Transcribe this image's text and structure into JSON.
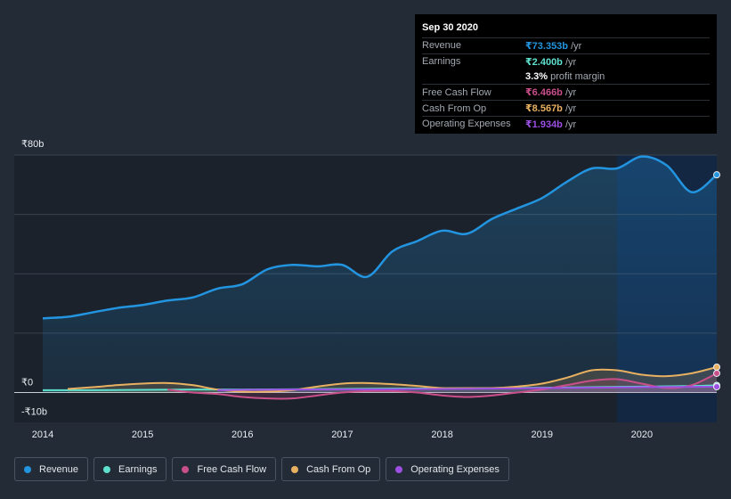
{
  "chart_data": {
    "type": "area",
    "y_tick_labels": [
      {
        "value": 80,
        "label": "₹80b"
      },
      {
        "value": 0,
        "label": "₹0"
      },
      {
        "value": -10,
        "label": "-₹10b"
      }
    ],
    "ylim": [
      -10,
      80
    ],
    "xlim": [
      2014,
      2020.75
    ],
    "x_tick_labels": [
      "2014",
      "2015",
      "2016",
      "2017",
      "2018",
      "2019",
      "2020"
    ],
    "x_tick_values": [
      2014,
      2015,
      2016,
      2017,
      2018,
      2019,
      2020
    ],
    "highlight_from": 2019.75,
    "series": [
      {
        "name": "Revenue",
        "color": "#2394df",
        "x": [
          2014,
          2014.25,
          2014.5,
          2014.75,
          2015,
          2015.25,
          2015.5,
          2015.75,
          2016,
          2016.25,
          2016.5,
          2016.75,
          2017,
          2017.25,
          2017.5,
          2017.75,
          2018,
          2018.25,
          2018.5,
          2018.75,
          2019,
          2019.25,
          2019.5,
          2019.75,
          2020,
          2020.25,
          2020.5,
          2020.75
        ],
        "values": [
          25,
          25.5,
          27,
          28.5,
          29.5,
          31,
          32,
          35,
          36.5,
          41.5,
          43,
          42.5,
          43,
          39,
          47.5,
          51,
          54.5,
          53.5,
          58.5,
          62,
          65.5,
          71,
          75.5,
          75.5,
          79.5,
          76.5,
          67.5,
          73.353
        ]
      },
      {
        "name": "Earnings",
        "color": "#5ee0cf",
        "x": [
          2014,
          2014.5,
          2015,
          2015.5,
          2016,
          2016.5,
          2017,
          2017.5,
          2018,
          2018.5,
          2019,
          2019.5,
          2020,
          2020.5,
          2020.75
        ],
        "values": [
          0.8,
          0.8,
          0.9,
          1.0,
          1.0,
          1.1,
          1.2,
          1.3,
          1.4,
          1.5,
          1.6,
          1.8,
          2.0,
          2.2,
          2.4
        ]
      },
      {
        "name": "Free Cash Flow",
        "color": "#c94f8b",
        "x": [
          2015.25,
          2015.5,
          2015.75,
          2016,
          2016.25,
          2016.5,
          2016.75,
          2017,
          2017.25,
          2017.5,
          2017.75,
          2018,
          2018.25,
          2018.5,
          2018.75,
          2019,
          2019.25,
          2019.5,
          2019.75,
          2020,
          2020.25,
          2020.5,
          2020.75
        ],
        "values": [
          1,
          0,
          -0.5,
          -1.5,
          -2,
          -2,
          -1,
          0,
          0.5,
          0.5,
          0,
          -1,
          -1.5,
          -1,
          0,
          1,
          2.5,
          4,
          4.5,
          3,
          1.5,
          2.5,
          6.466
        ]
      },
      {
        "name": "Cash From Op",
        "color": "#e8b061",
        "x": [
          2014.25,
          2014.5,
          2014.75,
          2015,
          2015.25,
          2015.5,
          2015.75,
          2016,
          2016.25,
          2016.5,
          2016.75,
          2017,
          2017.25,
          2017.5,
          2017.75,
          2018,
          2018.25,
          2018.5,
          2018.75,
          2019,
          2019.25,
          2019.5,
          2019.75,
          2020,
          2020.25,
          2020.5,
          2020.75
        ],
        "values": [
          1.2,
          1.8,
          2.5,
          3,
          3.2,
          2.5,
          1,
          0.3,
          0.3,
          0.8,
          2,
          3,
          3.2,
          2.8,
          2.2,
          1.5,
          1.5,
          1.5,
          2,
          3,
          5,
          7.5,
          7.5,
          6,
          5.5,
          6.5,
          8.567
        ]
      },
      {
        "name": "Operating Expenses",
        "color": "#9b4fe3",
        "x": [
          2015.75,
          2016,
          2016.5,
          2017,
          2017.5,
          2018,
          2018.5,
          2019,
          2019.5,
          2020,
          2020.5,
          2020.75
        ],
        "values": [
          0.8,
          0.9,
          1.0,
          1.0,
          1.1,
          1.2,
          1.3,
          1.5,
          1.6,
          1.8,
          1.9,
          1.934
        ]
      }
    ]
  },
  "tooltip": {
    "date": "Sep 30 2020",
    "rows": [
      {
        "label": "Revenue",
        "value": "₹73.353b",
        "unit": " /yr",
        "color": "#2394df"
      },
      {
        "label": "Earnings",
        "value": "₹2.400b",
        "unit": " /yr",
        "color": "#5ee0cf"
      },
      {
        "label": "",
        "value": "3.3%",
        "unit": " profit margin",
        "color": "#ffffff"
      },
      {
        "label": "Free Cash Flow",
        "value": "₹6.466b",
        "unit": " /yr",
        "color": "#c94f8b"
      },
      {
        "label": "Cash From Op",
        "value": "₹8.567b",
        "unit": " /yr",
        "color": "#e8b061"
      },
      {
        "label": "Operating Expenses",
        "value": "₹1.934b",
        "unit": " /yr",
        "color": "#9b4fe3"
      }
    ]
  },
  "legend": [
    {
      "label": "Revenue",
      "color": "#2394df"
    },
    {
      "label": "Earnings",
      "color": "#5ee0cf"
    },
    {
      "label": "Free Cash Flow",
      "color": "#c94f8b"
    },
    {
      "label": "Cash From Op",
      "color": "#e8b061"
    },
    {
      "label": "Operating Expenses",
      "color": "#9b4fe3"
    }
  ]
}
